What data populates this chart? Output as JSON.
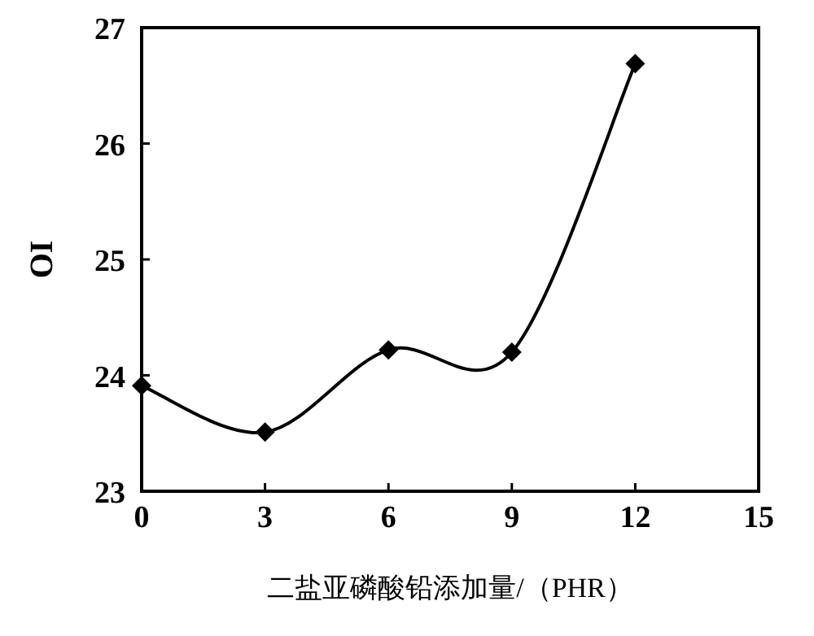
{
  "chart_data": {
    "type": "line",
    "xlabel": "二盐亚磷酸铅添加量/（PHR）",
    "ylabel": "OI",
    "x": [
      0,
      3,
      6,
      9,
      12
    ],
    "series": [
      {
        "color": "#000000",
        "values": [
          23.91,
          23.51,
          24.22,
          24.2,
          26.69
        ]
      }
    ],
    "xlim": [
      0,
      15
    ],
    "xticks": [
      0,
      3,
      6,
      9,
      12,
      15
    ],
    "ylim": [
      23,
      27
    ],
    "yticks": [
      23,
      24,
      25,
      26,
      27
    ],
    "marker": "diamond",
    "line_style": "solid"
  }
}
